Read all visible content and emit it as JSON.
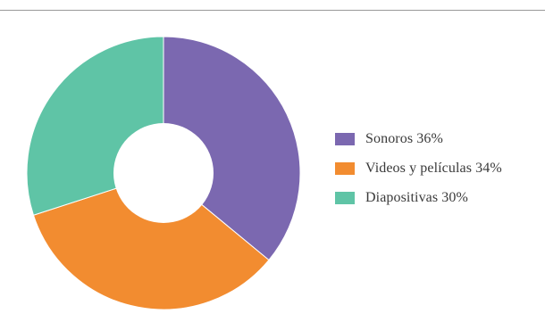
{
  "chart_data": {
    "type": "pie",
    "variant": "donut",
    "title": "",
    "legend_position": "right",
    "start_angle_deg": 0,
    "direction": "clockwise",
    "slices": [
      {
        "label": "Sonoros 36%",
        "value": 36,
        "color": "#7b68b0"
      },
      {
        "label": "Videos y películas 34%",
        "value": 34,
        "color": "#f28c30"
      },
      {
        "label": "Diapositivas 30%",
        "value": 30,
        "color": "#5fc4a6"
      }
    ]
  }
}
